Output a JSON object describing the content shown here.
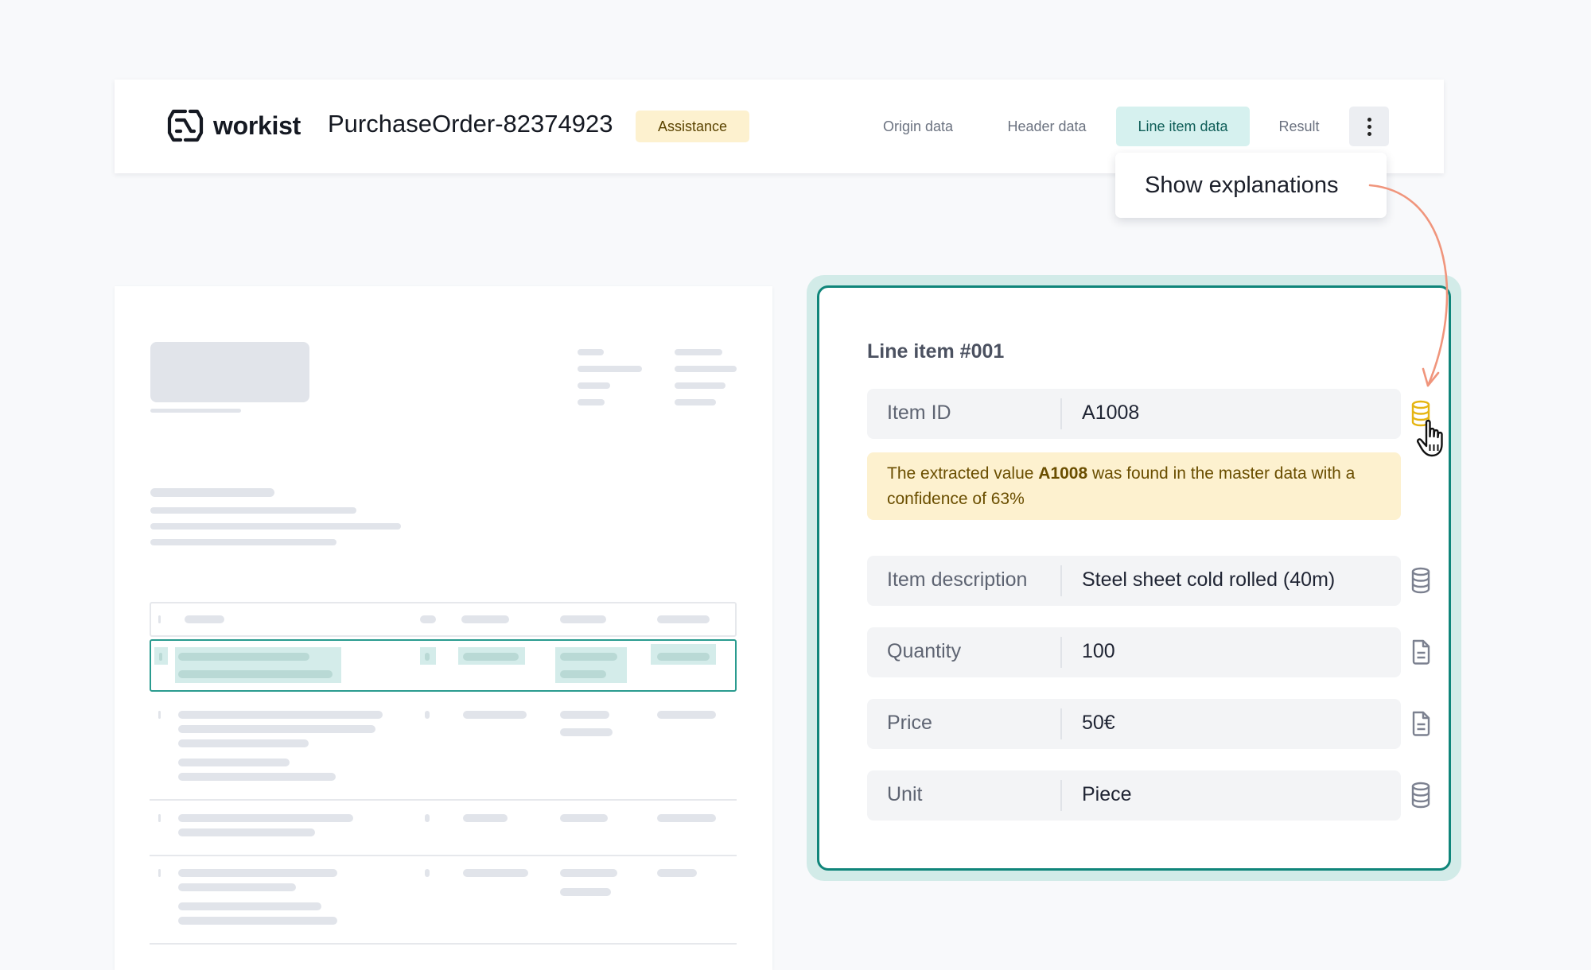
{
  "header": {
    "logo_text": "workist",
    "document_title": "PurchaseOrder-82374923",
    "status_badge": "Assistance",
    "tabs": [
      {
        "label": "Origin data",
        "active": false
      },
      {
        "label": "Header data",
        "active": false
      },
      {
        "label": "Line item data",
        "active": true
      },
      {
        "label": "Result",
        "active": false
      }
    ],
    "menu_icon": "vertical-dots-icon",
    "dropdown": {
      "items": [
        "Show explanations"
      ]
    }
  },
  "line_item": {
    "title": "Line item #001",
    "fields": [
      {
        "label": "Item ID",
        "value": "A1008",
        "source_icon": "database-icon",
        "icon_state": "active"
      },
      {
        "label": "Item description",
        "value": "Steel sheet cold rolled (40m)",
        "source_icon": "database-icon"
      },
      {
        "label": "Quantity",
        "value": "100",
        "source_icon": "document-icon"
      },
      {
        "label": "Price",
        "value": "50€",
        "source_icon": "document-icon"
      },
      {
        "label": "Unit",
        "value": "Piece",
        "source_icon": "database-icon"
      }
    ],
    "explanation": {
      "prefix": "The extracted value ",
      "highlight": "A1008",
      "suffix": " was found in the master data with a confidence of 63%"
    }
  },
  "colors": {
    "accent_teal": "#0f857a",
    "active_tab_bg": "#d6f1ef",
    "badge_bg": "#fdf1cf",
    "explanation_bg": "#fdf1cf",
    "active_icon": "#e5b512",
    "arrow": "#f0957c"
  }
}
